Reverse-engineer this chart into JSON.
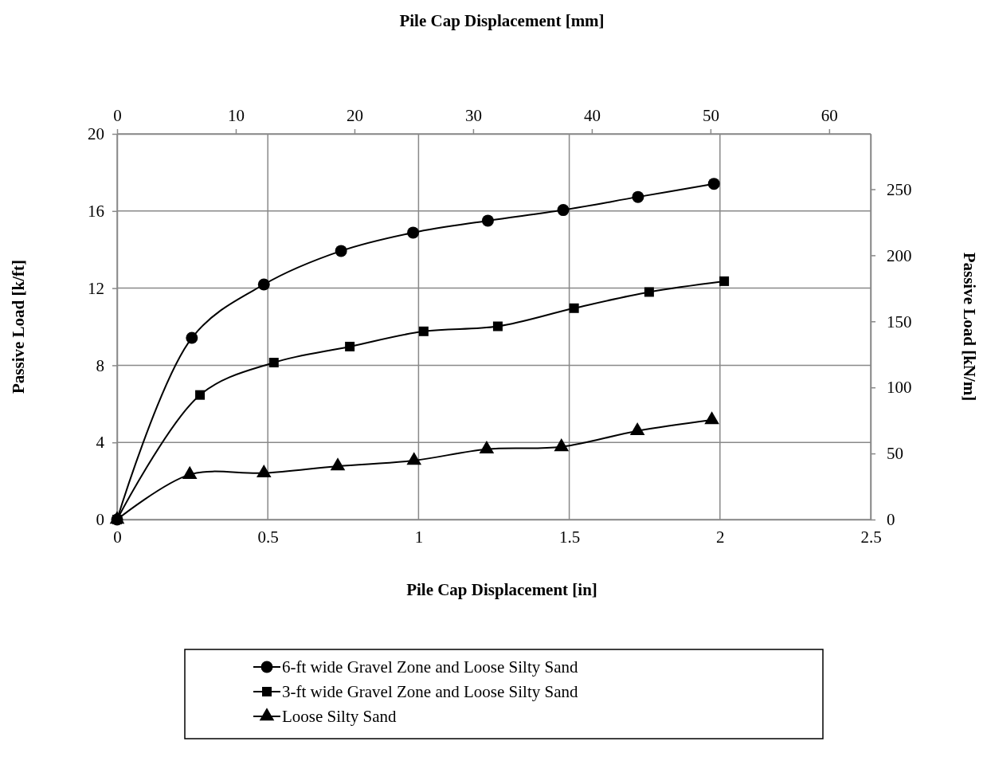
{
  "chart_data": {
    "type": "line",
    "xlabel": "Pile Cap Displacement [in]",
    "x2label": "Pile Cap Displacement [mm]",
    "ylabel": "Passive Load [k/ft]",
    "y2label": "Passive Load [kN/m]",
    "xlim": [
      0,
      2.5
    ],
    "xticks": [
      0,
      0.5,
      1,
      1.5,
      2,
      2.5
    ],
    "x2lim": [
      0,
      63.5
    ],
    "x2ticks": [
      0,
      10,
      20,
      30,
      40,
      50,
      60
    ],
    "ylim": [
      0,
      20
    ],
    "yticks": [
      0,
      4,
      8,
      12,
      16,
      20
    ],
    "y2lim": [
      0,
      291.9
    ],
    "y2ticks": [
      0,
      50,
      100,
      150,
      200,
      250
    ],
    "grid": true,
    "legend": "bottom",
    "line_style": "solid",
    "series": [
      {
        "name": "6-ft wide Gravel Zone and Loose Silty Sand",
        "color": "#000000",
        "marker": "circle",
        "x": [
          0,
          0.248,
          0.487,
          0.743,
          0.982,
          1.23,
          1.48,
          1.728,
          1.98
        ],
        "values": [
          0,
          9.42,
          12.19,
          13.93,
          14.88,
          15.5,
          16.05,
          16.73,
          17.41
        ]
      },
      {
        "name": "3-ft wide Gravel Zone and Loose Silty Sand",
        "color": "#000000",
        "marker": "square",
        "x": [
          0,
          0.275,
          0.52,
          0.772,
          1.017,
          1.263,
          1.516,
          1.765,
          2.014
        ],
        "values": [
          0,
          6.46,
          8.14,
          8.97,
          9.76,
          10.02,
          10.96,
          11.8,
          12.36
        ]
      },
      {
        "name": "Loose Silty Sand",
        "color": "#000000",
        "marker": "triangle",
        "x": [
          0,
          0.241,
          0.487,
          0.732,
          0.985,
          1.226,
          1.474,
          1.726,
          1.973
        ],
        "values": [
          0,
          2.33,
          2.41,
          2.77,
          3.06,
          3.65,
          3.77,
          4.6,
          5.17
        ]
      }
    ]
  }
}
